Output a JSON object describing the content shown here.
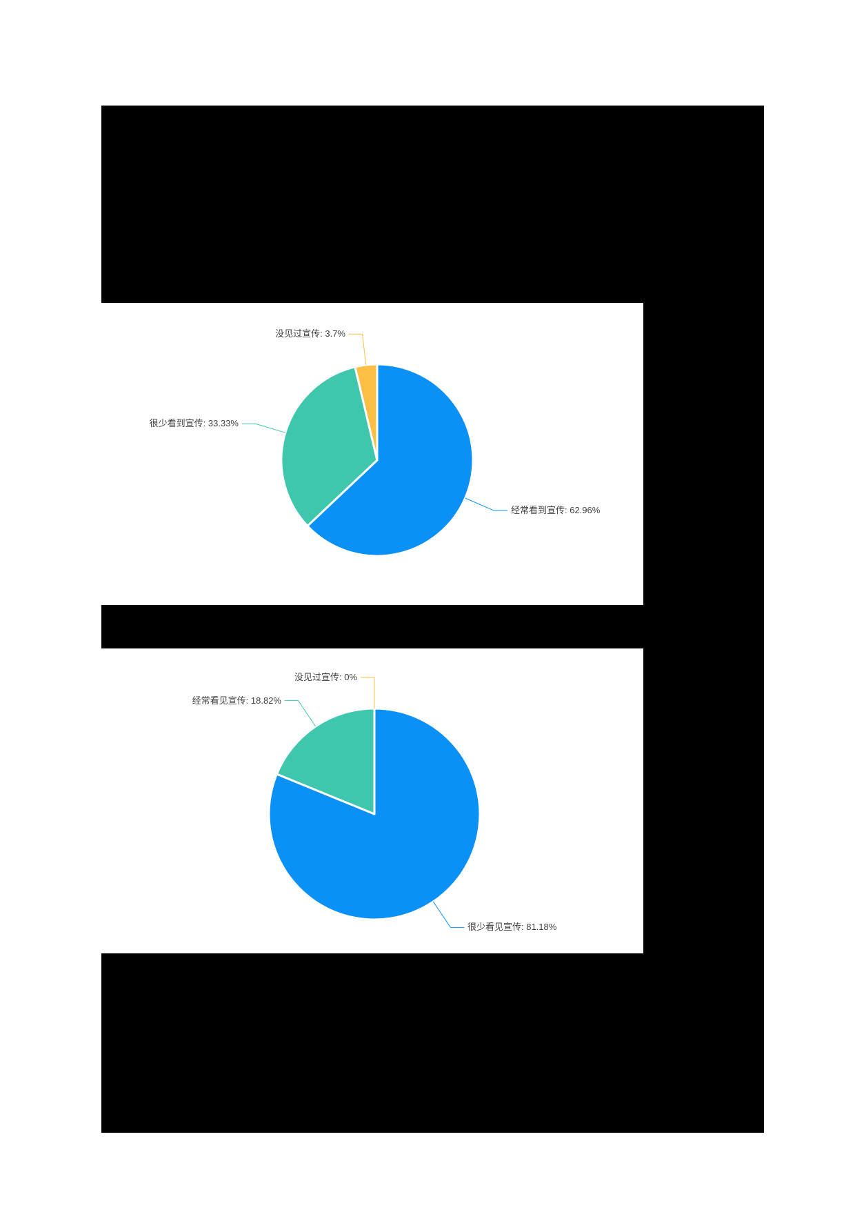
{
  "page": {
    "background_color": "#ffffff",
    "canvas_background_color": "#000000",
    "label_text_color": "#404040"
  },
  "chart_data": [
    {
      "type": "pie",
      "title": "",
      "unit": "%",
      "legend": "none",
      "start_angle_deg": 0,
      "direction": "clockwise",
      "label_style": "leader-line",
      "slices": [
        {
          "name": "经常看到宣传",
          "value": 62.96,
          "value_display": "62.96%",
          "color": "#0b90f6"
        },
        {
          "name": "很少看到宣传",
          "value": 33.33,
          "value_display": "33.33%",
          "color": "#3fc7ae"
        },
        {
          "name": "没见过宣传",
          "value": 3.7,
          "value_display": "3.7%",
          "color": "#fbbf45"
        }
      ]
    },
    {
      "type": "pie",
      "title": "",
      "unit": "%",
      "legend": "none",
      "start_angle_deg": 0,
      "direction": "clockwise",
      "label_style": "leader-line",
      "slices": [
        {
          "name": "很少看见宣传",
          "value": 81.18,
          "value_display": "81.18%",
          "color": "#0b90f6"
        },
        {
          "name": "经常看见宣传",
          "value": 18.82,
          "value_display": "18.82%",
          "color": "#3fc7ae"
        },
        {
          "name": "没见过宣传",
          "value": 0,
          "value_display": "0%",
          "color": "#fbbf45"
        }
      ]
    }
  ]
}
